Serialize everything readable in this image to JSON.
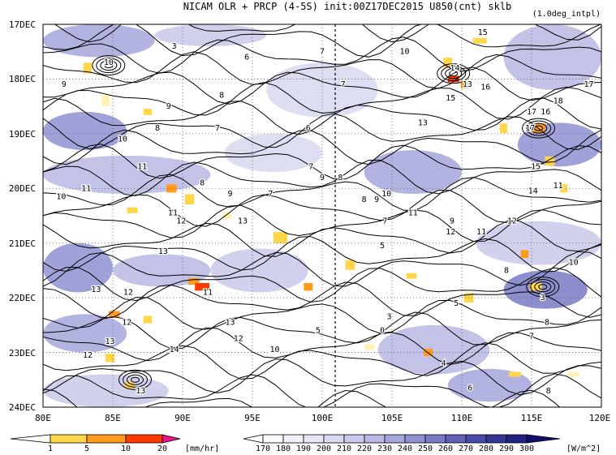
{
  "chart_data": {
    "type": "heatmap",
    "title": "NICAM  OLR + PRCP (4-5S) init:00Z17DEC2015 U850(cnt) sklb",
    "subtitle": "(1.0deg_intpl)",
    "x_axis": {
      "range": [
        80,
        120
      ],
      "ticks": [
        80,
        85,
        90,
        95,
        100,
        105,
        110,
        115,
        120
      ],
      "tick_labels": [
        "80E",
        "85E",
        "90E",
        "95E",
        "100E",
        "105E",
        "110E",
        "115E",
        "120E"
      ]
    },
    "y_axis": {
      "range": [
        "17DEC",
        "24DEC"
      ],
      "reversed": true,
      "tick_labels": [
        "17DEC",
        "18DEC",
        "19DEC",
        "20DEC",
        "21DEC",
        "22DEC",
        "23DEC",
        "24DEC"
      ]
    },
    "grid": true,
    "reference_line": {
      "x": 101,
      "style": "dashed"
    },
    "precip_colorbar": {
      "labels": [
        "1",
        "5",
        "10",
        "20"
      ],
      "colors": [
        "#fff2b3",
        "#ffd54a",
        "#ff9a1a",
        "#ff3a00",
        "#e8138f"
      ],
      "unit": "[mm/hr]"
    },
    "olr_colorbar": {
      "labels": [
        "170",
        "180",
        "190",
        "200",
        "210",
        "220",
        "230",
        "240",
        "250",
        "260",
        "270",
        "280",
        "290",
        "300"
      ],
      "colors": [
        "#0f0f6b",
        "#222282",
        "#353596",
        "#4a4aa8",
        "#6262b8",
        "#7a7ac6",
        "#9191d2",
        "#a6a6dc",
        "#b8b8e4",
        "#c9c9eb",
        "#d8d8f1",
        "#e6e6f6",
        "#f1f1fa",
        "#fbfbfe"
      ],
      "unit": "[W/m^2]"
    },
    "contour_labels": [
      {
        "text": "3",
        "x": 89.4,
        "t": 17.4
      },
      {
        "text": "6",
        "x": 94.6,
        "t": 17.6
      },
      {
        "text": "7",
        "x": 100.0,
        "t": 17.5
      },
      {
        "text": "10",
        "x": 84.7,
        "t": 17.7
      },
      {
        "text": "9",
        "x": 81.5,
        "t": 18.1
      },
      {
        "text": "8",
        "x": 92.8,
        "t": 18.3
      },
      {
        "text": "9",
        "x": 89.0,
        "t": 18.5
      },
      {
        "text": "7",
        "x": 101.5,
        "t": 18.1
      },
      {
        "text": "10",
        "x": 105.9,
        "t": 17.5
      },
      {
        "text": "14",
        "x": 109.5,
        "t": 17.8
      },
      {
        "text": "13",
        "x": 110.4,
        "t": 18.1
      },
      {
        "text": "16",
        "x": 111.7,
        "t": 18.15
      },
      {
        "text": "15",
        "x": 111.5,
        "t": 17.15
      },
      {
        "text": "15",
        "x": 109.2,
        "t": 18.35
      },
      {
        "text": "17",
        "x": 119.1,
        "t": 18.1
      },
      {
        "text": "18",
        "x": 116.9,
        "t": 18.4
      },
      {
        "text": "16",
        "x": 116.0,
        "t": 18.6
      },
      {
        "text": "17",
        "x": 115.0,
        "t": 18.6
      },
      {
        "text": "17",
        "x": 114.9,
        "t": 18.9
      },
      {
        "text": "13",
        "x": 107.2,
        "t": 18.8
      },
      {
        "text": "8",
        "x": 88.2,
        "t": 18.9
      },
      {
        "text": "7",
        "x": 92.5,
        "t": 18.9
      },
      {
        "text": "6",
        "x": 99.0,
        "t": 18.9
      },
      {
        "text": "10",
        "x": 85.7,
        "t": 19.1
      },
      {
        "text": "15",
        "x": 115.3,
        "t": 19.6
      },
      {
        "text": "11",
        "x": 87.1,
        "t": 19.6
      },
      {
        "text": "7",
        "x": 99.2,
        "t": 19.6
      },
      {
        "text": "8",
        "x": 91.4,
        "t": 19.9
      },
      {
        "text": "9",
        "x": 100.0,
        "t": 19.8
      },
      {
        "text": "8",
        "x": 101.3,
        "t": 19.8
      },
      {
        "text": "10",
        "x": 81.3,
        "t": 20.15
      },
      {
        "text": "11",
        "x": 83.1,
        "t": 20.0
      },
      {
        "text": "8",
        "x": 103.0,
        "t": 20.2
      },
      {
        "text": "9",
        "x": 103.9,
        "t": 20.2
      },
      {
        "text": "10",
        "x": 104.6,
        "t": 20.1
      },
      {
        "text": "14",
        "x": 115.1,
        "t": 20.05
      },
      {
        "text": "11",
        "x": 116.9,
        "t": 19.95
      },
      {
        "text": "9",
        "x": 93.4,
        "t": 20.1
      },
      {
        "text": "7",
        "x": 96.3,
        "t": 20.1
      },
      {
        "text": "11",
        "x": 89.3,
        "t": 20.45
      },
      {
        "text": "11",
        "x": 106.5,
        "t": 20.45
      },
      {
        "text": "9",
        "x": 109.3,
        "t": 20.6
      },
      {
        "text": "12",
        "x": 113.6,
        "t": 20.6
      },
      {
        "text": "12",
        "x": 89.9,
        "t": 20.6
      },
      {
        "text": "13",
        "x": 94.3,
        "t": 20.6
      },
      {
        "text": "7",
        "x": 104.5,
        "t": 20.6
      },
      {
        "text": "12",
        "x": 109.2,
        "t": 20.8
      },
      {
        "text": "11",
        "x": 111.4,
        "t": 20.8
      },
      {
        "text": "13",
        "x": 88.6,
        "t": 21.15
      },
      {
        "text": "5",
        "x": 104.3,
        "t": 21.05
      },
      {
        "text": "8",
        "x": 113.2,
        "t": 21.5
      },
      {
        "text": "10",
        "x": 118.0,
        "t": 21.35
      },
      {
        "text": "13",
        "x": 83.8,
        "t": 21.85
      },
      {
        "text": "12",
        "x": 86.1,
        "t": 21.9
      },
      {
        "text": "11",
        "x": 91.8,
        "t": 21.9
      },
      {
        "text": "3",
        "x": 115.8,
        "t": 22.0
      },
      {
        "text": "5",
        "x": 109.6,
        "t": 22.1
      },
      {
        "text": "3",
        "x": 104.8,
        "t": 22.35
      },
      {
        "text": "12",
        "x": 86.0,
        "t": 22.45
      },
      {
        "text": "13",
        "x": 93.4,
        "t": 22.45
      },
      {
        "text": "0",
        "x": 104.3,
        "t": 22.6
      },
      {
        "text": "5",
        "x": 99.7,
        "t": 22.6
      },
      {
        "text": "8",
        "x": 116.1,
        "t": 22.45
      },
      {
        "text": "12",
        "x": 94.0,
        "t": 22.75
      },
      {
        "text": "13",
        "x": 84.8,
        "t": 22.8
      },
      {
        "text": "7",
        "x": 115.0,
        "t": 22.7
      },
      {
        "text": "10",
        "x": 96.6,
        "t": 22.95
      },
      {
        "text": "14",
        "x": 89.4,
        "t": 22.95
      },
      {
        "text": "12",
        "x": 83.2,
        "t": 23.05
      },
      {
        "text": "4",
        "x": 108.7,
        "t": 23.2
      },
      {
        "text": "6",
        "x": 110.6,
        "t": 23.65
      },
      {
        "text": "8",
        "x": 116.2,
        "t": 23.7
      },
      {
        "text": "13",
        "x": 87.0,
        "t": 23.7
      }
    ]
  }
}
